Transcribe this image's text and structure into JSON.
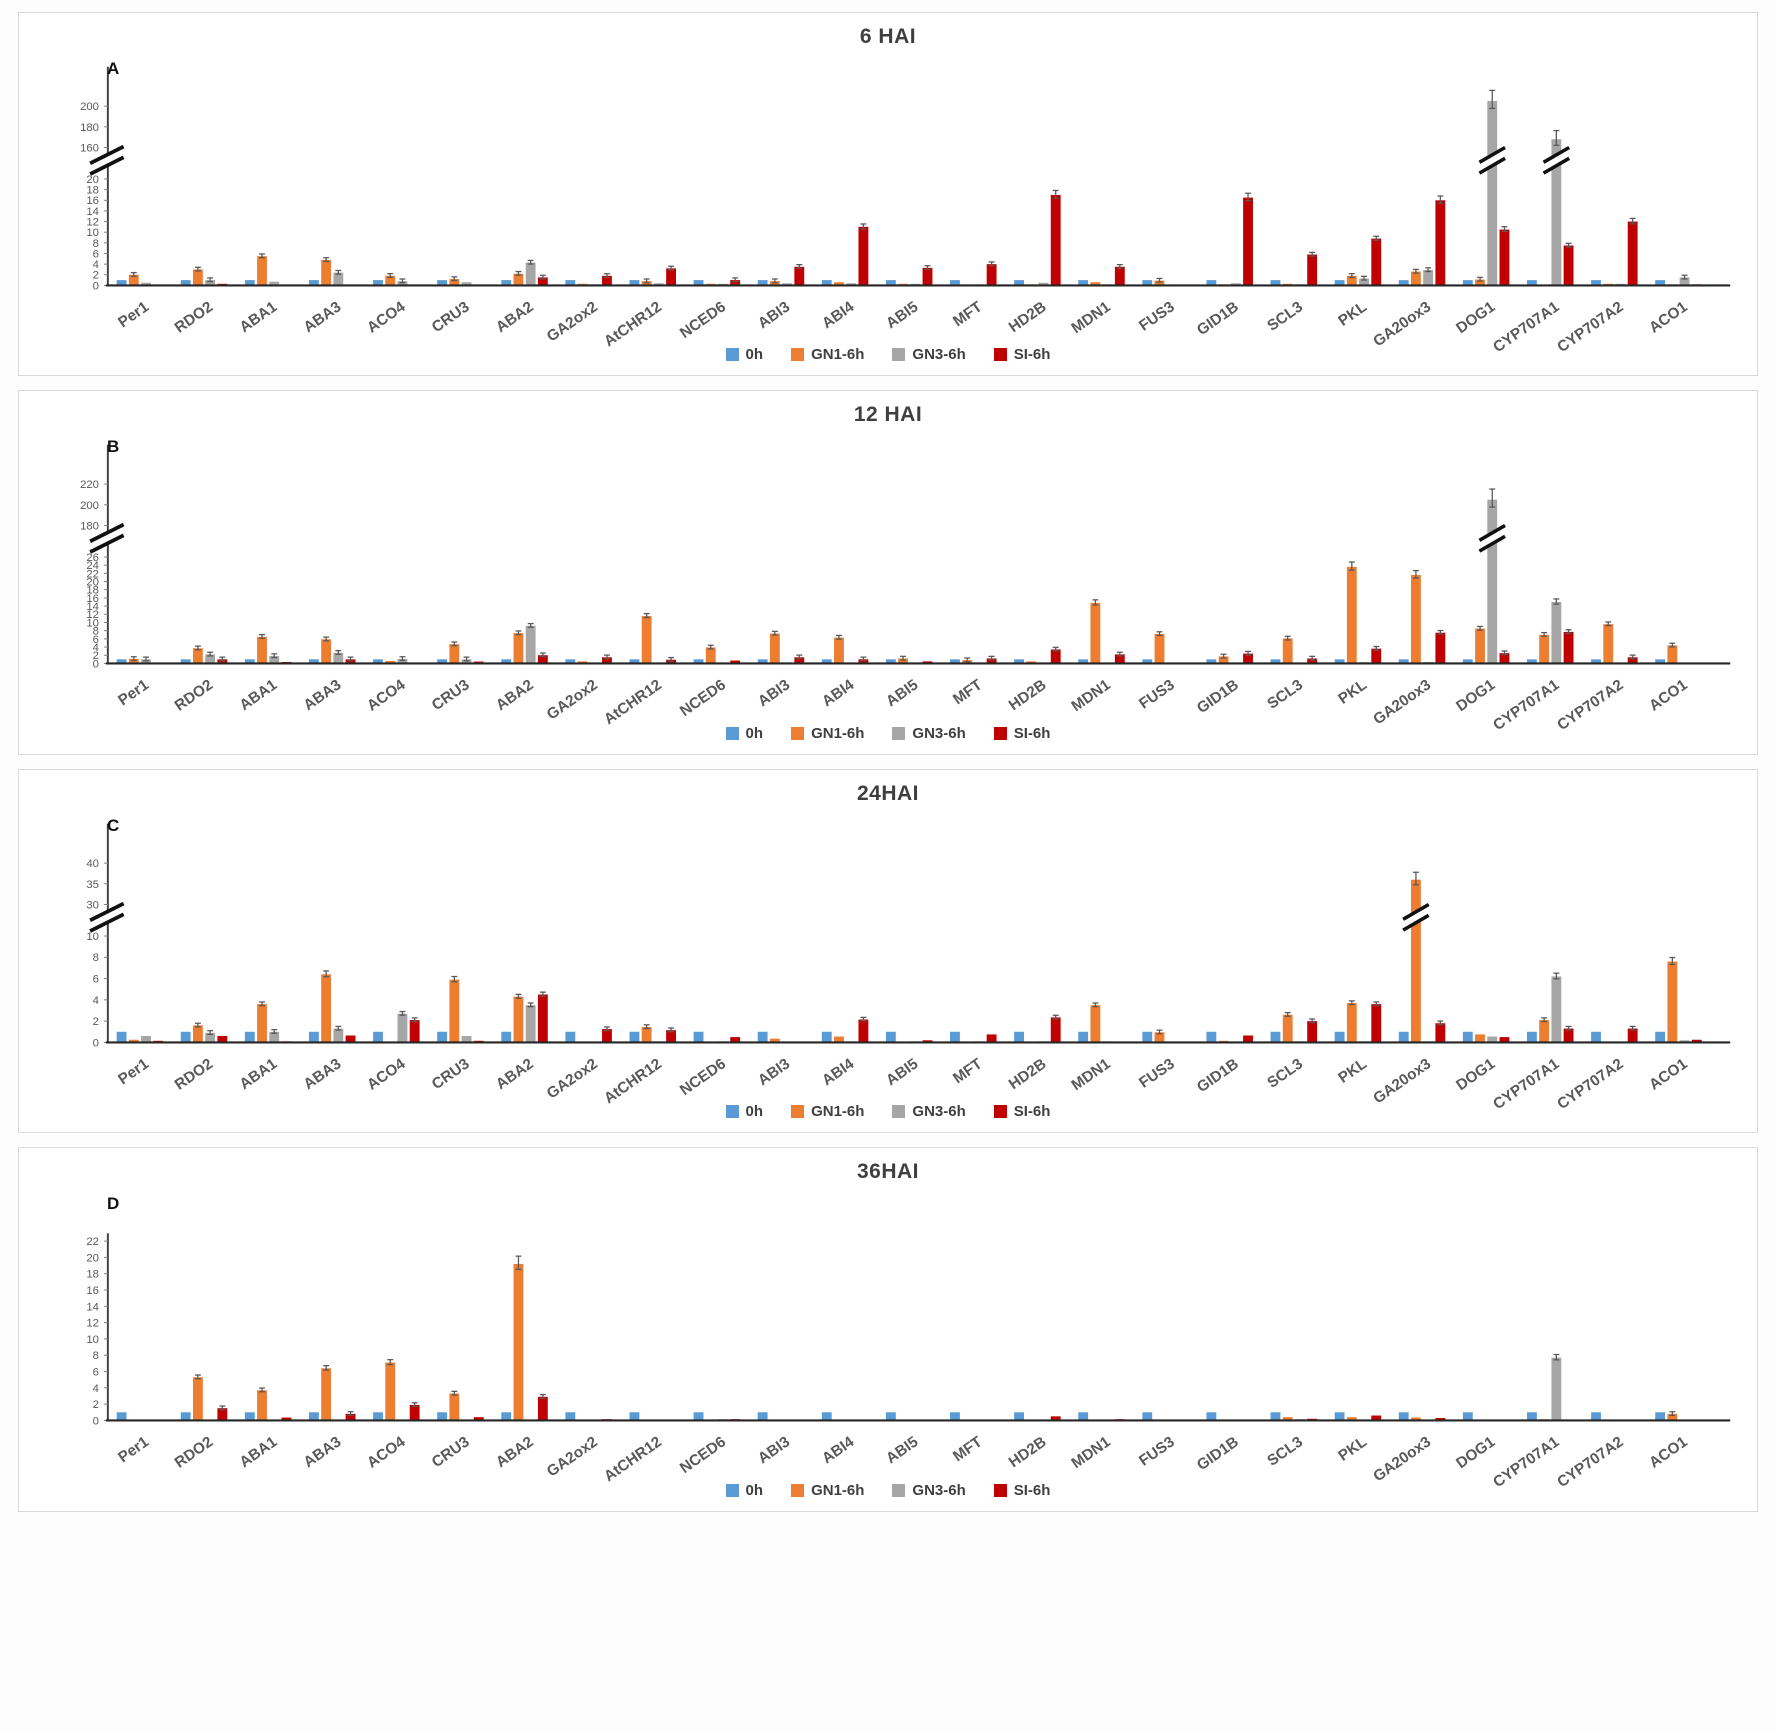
{
  "chart_data": [
    {
      "type": "bar",
      "panel_label": "A",
      "title": "6 HAI",
      "legend_position": "bottom",
      "grid": false,
      "has_error_bars": true,
      "categories": [
        "Per1",
        "RDO2",
        "ABA1",
        "ABA3",
        "ACO4",
        "CRU3",
        "ABA2",
        "GA2ox2",
        "AtCHR12",
        "NCED6",
        "ABI3",
        "ABI4",
        "ABI5",
        "MFT",
        "HD2B",
        "MDN1",
        "FUS3",
        "GID1B",
        "SCL3",
        "PKL",
        "GA20ox3",
        "DOG1",
        "CYP707A1",
        "CYP707A2",
        "ACO1"
      ],
      "y_axis": {
        "axis_break": true,
        "lower_ticks": [
          0,
          2,
          4,
          6,
          8,
          10,
          12,
          14,
          16,
          18,
          20
        ],
        "upper_ticks": [
          160,
          180,
          200
        ]
      },
      "series": [
        {
          "name": "0h",
          "color": "#5B9BD5",
          "values": [
            1,
            1,
            1,
            1,
            1,
            1,
            1,
            1,
            1,
            1,
            1,
            1,
            1,
            1,
            1,
            1,
            1,
            1,
            1,
            1,
            1,
            1,
            1,
            1,
            1
          ]
        },
        {
          "name": "GN1-6h",
          "color": "#ED7D31",
          "values": [
            2,
            3,
            5.5,
            4.8,
            1.8,
            1.2,
            2.2,
            0.3,
            0.8,
            0.3,
            0.8,
            0.6,
            0.3,
            0.1,
            0.2,
            0.6,
            0.9,
            0.2,
            0.3,
            1.8,
            2.6,
            1.1,
            0.1,
            0.3,
            0.2
          ]
        },
        {
          "name": "GN3-6h",
          "color": "#A6A6A6",
          "values": [
            0.5,
            1.0,
            0.7,
            2.4,
            0.8,
            0.6,
            4.3,
            0.2,
            0.4,
            0.3,
            0.4,
            0.4,
            0.3,
            0.2,
            0.5,
            0.2,
            0.1,
            0.4,
            0.2,
            1.3,
            2.9,
            205,
            168,
            0.3,
            1.5
          ]
        },
        {
          "name": "SI-6h",
          "color": "#C00000",
          "values": [
            0.05,
            0.3,
            0.1,
            0.1,
            0.1,
            0.05,
            1.5,
            1.8,
            3.2,
            1.0,
            3.5,
            11,
            3.3,
            4.0,
            17,
            3.5,
            0.05,
            16.5,
            5.8,
            8.8,
            16,
            10.5,
            7.5,
            12,
            0.2
          ]
        }
      ]
    },
    {
      "type": "bar",
      "panel_label": "B",
      "title": "12 HAI",
      "legend_position": "bottom",
      "grid": false,
      "has_error_bars": true,
      "categories": [
        "Per1",
        "RDO2",
        "ABA1",
        "ABA3",
        "ACO4",
        "CRU3",
        "ABA2",
        "GA2ox2",
        "AtCHR12",
        "NCED6",
        "ABI3",
        "ABI4",
        "ABI5",
        "MFT",
        "HD2B",
        "MDN1",
        "FUS3",
        "GID1B",
        "SCL3",
        "PKL",
        "GA20ox3",
        "DOG1",
        "CYP707A1",
        "CYP707A2",
        "ACO1"
      ],
      "y_axis": {
        "axis_break": true,
        "lower_ticks": [
          0,
          2,
          4,
          6,
          8,
          10,
          12,
          14,
          16,
          18,
          20,
          22,
          24,
          26
        ],
        "upper_ticks": [
          180,
          200,
          220
        ]
      },
      "series": [
        {
          "name": "0h",
          "color": "#5B9BD5",
          "values": [
            1,
            1,
            1,
            1,
            1,
            1,
            1,
            1,
            1,
            1,
            1,
            1,
            1,
            1,
            1,
            1,
            1,
            1,
            1,
            1,
            1,
            1,
            1,
            1,
            1
          ]
        },
        {
          "name": "GN1-6h",
          "color": "#ED7D31",
          "values": [
            1.1,
            3.7,
            6.5,
            5.9,
            0.6,
            4.7,
            7.4,
            0.5,
            11.6,
            3.9,
            7.3,
            6.3,
            1.2,
            0.8,
            0.5,
            14.8,
            7.2,
            1.7,
            6.1,
            23.6,
            21.6,
            8.5,
            7.0,
            9.6,
            4.4
          ]
        },
        {
          "name": "GN3-6h",
          "color": "#A6A6A6",
          "values": [
            1.0,
            2.2,
            1.8,
            2.6,
            1.1,
            1.0,
            9.2,
            0.1,
            0.15,
            0.1,
            0.25,
            0.1,
            0.1,
            0.1,
            0.1,
            0.1,
            0.1,
            0.1,
            0.1,
            0.3,
            0.35,
            205,
            15,
            0.2,
            0.1
          ]
        },
        {
          "name": "SI-6h",
          "color": "#C00000",
          "values": [
            0.15,
            1.0,
            0.35,
            1.0,
            0.05,
            0.45,
            2.0,
            1.5,
            0.9,
            0.7,
            1.5,
            1.0,
            0.5,
            1.2,
            3.4,
            2.2,
            0.05,
            2.4,
            1.2,
            3.6,
            7.5,
            2.5,
            7.7,
            1.5,
            0.2
          ]
        }
      ]
    },
    {
      "type": "bar",
      "panel_label": "C",
      "title": "24HAI",
      "legend_position": "bottom",
      "grid": false,
      "has_error_bars": true,
      "categories": [
        "Per1",
        "RDO2",
        "ABA1",
        "ABA3",
        "ACO4",
        "CRU3",
        "ABA2",
        "GA2ox2",
        "AtCHR12",
        "NCED6",
        "ABI3",
        "ABI4",
        "ABI5",
        "MFT",
        "HD2B",
        "MDN1",
        "FUS3",
        "GID1B",
        "SCL3",
        "PKL",
        "GA20ox3",
        "DOG1",
        "CYP707A1",
        "CYP707A2",
        "ACO1"
      ],
      "y_axis": {
        "axis_break": true,
        "lower_ticks": [
          0,
          2,
          4,
          6,
          8,
          10
        ],
        "upper_ticks": [
          30,
          35,
          40
        ]
      },
      "series": [
        {
          "name": "0h",
          "color": "#5B9BD5",
          "values": [
            1,
            1,
            1,
            1,
            1,
            1,
            1,
            1,
            1,
            1,
            1,
            1,
            1,
            1,
            1,
            1,
            1,
            1,
            1,
            1,
            1,
            1,
            1,
            1,
            1
          ]
        },
        {
          "name": "GN1-6h",
          "color": "#ED7D31",
          "values": [
            0.25,
            1.6,
            3.6,
            6.4,
            0.05,
            5.9,
            4.3,
            0.05,
            1.45,
            0.05,
            0.35,
            0.55,
            0.05,
            0.05,
            0.05,
            3.5,
            0.95,
            0.15,
            2.6,
            3.7,
            36,
            0.75,
            2.1,
            0.05,
            7.6
          ]
        },
        {
          "name": "GN3-6h",
          "color": "#A6A6A6",
          "values": [
            0.6,
            0.9,
            1.0,
            1.3,
            2.7,
            0.6,
            3.5,
            0.05,
            0.1,
            0.1,
            0.05,
            0.1,
            0.1,
            0.1,
            0.1,
            0.1,
            0.05,
            0.05,
            0.1,
            0.1,
            0.1,
            0.55,
            6.2,
            0.05,
            0.2
          ]
        },
        {
          "name": "SI-6h",
          "color": "#C00000",
          "values": [
            0.15,
            0.6,
            0.1,
            0.65,
            2.1,
            0.15,
            4.5,
            1.25,
            1.15,
            0.5,
            0.05,
            2.15,
            0.2,
            0.75,
            2.35,
            0.05,
            0.05,
            0.65,
            2.0,
            3.6,
            1.8,
            0.5,
            1.3,
            1.3,
            0.25
          ]
        }
      ]
    },
    {
      "type": "bar",
      "panel_label": "D",
      "title": "36HAI",
      "legend_position": "bottom",
      "grid": false,
      "has_error_bars": true,
      "categories": [
        "Per1",
        "RDO2",
        "ABA1",
        "ABA3",
        "ACO4",
        "CRU3",
        "ABA2",
        "GA2ox2",
        "AtCHR12",
        "NCED6",
        "ABI3",
        "ABI4",
        "ABI5",
        "MFT",
        "HD2B",
        "MDN1",
        "FUS3",
        "GID1B",
        "SCL3",
        "PKL",
        "GA20ox3",
        "DOG1",
        "CYP707A1",
        "CYP707A2",
        "ACO1"
      ],
      "y_axis": {
        "axis_break": false,
        "lower_ticks": [
          0,
          2,
          4,
          6,
          8,
          10,
          12,
          14,
          16,
          18,
          20,
          22
        ],
        "upper_ticks": null
      },
      "series": [
        {
          "name": "0h",
          "color": "#5B9BD5",
          "values": [
            1,
            1,
            1,
            1,
            1,
            1,
            1,
            1,
            1,
            1,
            1,
            1,
            1,
            1,
            1,
            1,
            1,
            1,
            1,
            1,
            1,
            1,
            1,
            1,
            1
          ]
        },
        {
          "name": "GN1-6h",
          "color": "#ED7D31",
          "values": [
            0.05,
            5.3,
            3.7,
            6.4,
            7.1,
            3.3,
            19.2,
            0.05,
            0.1,
            0.05,
            0.05,
            0.05,
            0.05,
            0.05,
            0.05,
            0.05,
            0.1,
            0.05,
            0.4,
            0.4,
            0.35,
            0.05,
            0.15,
            0.05,
            0.8
          ]
        },
        {
          "name": "GN3-6h",
          "color": "#A6A6A6",
          "values": [
            0.05,
            0.05,
            0.05,
            0.05,
            0.05,
            0.05,
            0.05,
            0.05,
            0.05,
            0.15,
            0,
            0,
            0,
            0,
            0,
            0.05,
            0,
            0.05,
            0.15,
            0.1,
            0.05,
            0.05,
            7.7,
            0.05,
            0.1
          ]
        },
        {
          "name": "SI-6h",
          "color": "#C00000",
          "values": [
            0.1,
            1.5,
            0.35,
            0.8,
            1.9,
            0.4,
            2.9,
            0.15,
            0.05,
            0.15,
            0,
            0,
            0,
            0,
            0.5,
            0.15,
            0,
            0.1,
            0.2,
            0.6,
            0.3,
            0,
            0.1,
            0,
            0.05
          ]
        }
      ]
    }
  ]
}
